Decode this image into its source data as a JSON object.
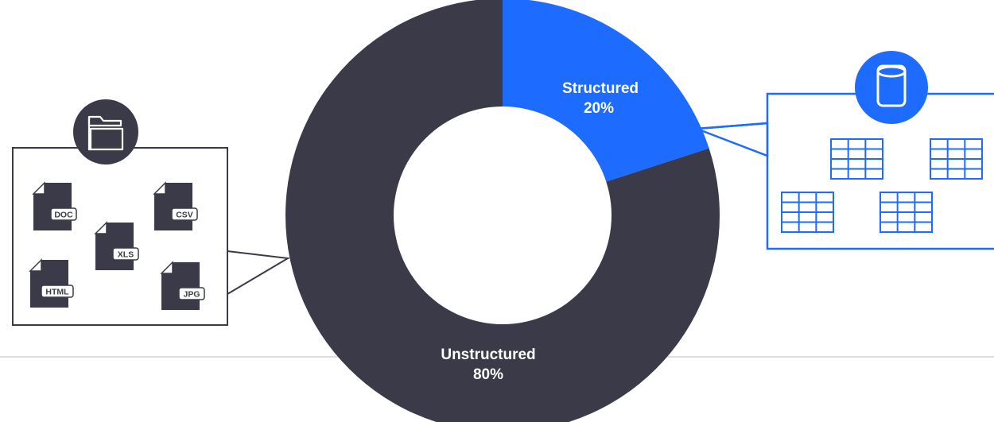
{
  "chart_data": {
    "type": "pie",
    "variant": "donut",
    "slices": [
      {
        "label": "Structured",
        "percent_label": "20%",
        "value": 20,
        "color": "#1e6bff"
      },
      {
        "label": "Unstructured",
        "percent_label": "80%",
        "value": 80,
        "color": "#3a3a49"
      }
    ]
  },
  "left_panel": {
    "icon": "folder-icon",
    "color": "#3a3a49",
    "files": [
      "DOC",
      "CSV",
      "XLS",
      "HTML",
      "JPG"
    ]
  },
  "right_panel": {
    "icon": "database-icon",
    "color": "#1e6bff",
    "tables": 4
  },
  "colors": {
    "background": "#ffffff",
    "divider": "#dddddd"
  }
}
